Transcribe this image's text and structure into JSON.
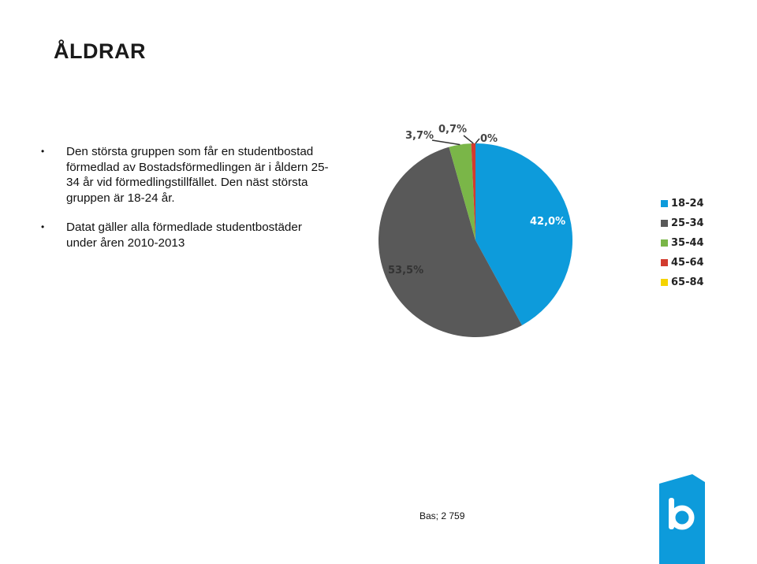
{
  "slide": {
    "title": "ÅLDRAR",
    "bullets": [
      "Den största gruppen som får en studentbostad förmedlad av Bostadsförmedlingen är i åldern 25-34 år vid förmedlingstillfället. Den näst största gruppen är 18-24 år.",
      "Datat gäller alla förmedlade studentbostäder under åren 2010-2013"
    ],
    "bullet_glyph": "•",
    "base_note": "Bas; 2 759"
  },
  "chart_data": {
    "type": "pie",
    "categories": [
      "18-24",
      "25-34",
      "35-44",
      "45-64",
      "65-84"
    ],
    "values": [
      42.0,
      53.5,
      3.7,
      0.7,
      0.0
    ],
    "data_labels": [
      "42,0%",
      "53,5%",
      "3,7%",
      "0,7%",
      "0%"
    ],
    "colors": [
      "#0d9bdb",
      "#595959",
      "#7ab648",
      "#d23b2e",
      "#f5d400"
    ],
    "legend_position": "right"
  },
  "logo": {
    "icon": "bostadsformedlingen-b-logo-icon",
    "color": "#0d9bdb"
  }
}
